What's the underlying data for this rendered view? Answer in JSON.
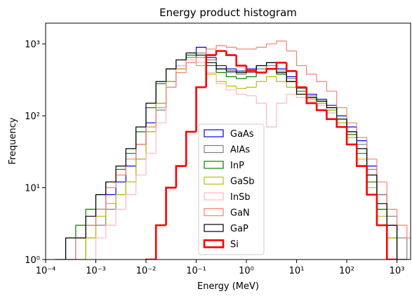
{
  "chart_data": {
    "type": "histogram",
    "title": "Energy product histogram",
    "xlabel": "Energy (MeV)",
    "ylabel": "Frequency",
    "xscale": "log",
    "yscale": "log",
    "bins": [
      0.0001,
      0.000158,
      0.000251,
      0.000398,
      0.000631,
      0.001,
      0.00158,
      0.00251,
      0.00398,
      0.00631,
      0.01,
      0.0158,
      0.0251,
      0.0398,
      0.0631,
      0.1,
      0.158,
      0.251,
      0.398,
      0.631,
      1,
      1.58,
      2.51,
      3.98,
      6.31,
      10,
      15.8,
      25.1,
      39.8,
      63.1,
      100,
      158,
      251,
      398,
      631,
      1000,
      1580,
      2510
    ],
    "xlim": [
      0.0001,
      1870
    ],
    "ylim": [
      1,
      1950
    ],
    "xticks": [
      {
        "value": 0.0001,
        "label": "10⁻⁴"
      },
      {
        "value": 0.001,
        "label": "10⁻³"
      },
      {
        "value": 0.01,
        "label": "10⁻²"
      },
      {
        "value": 0.1,
        "label": "10⁻¹"
      },
      {
        "value": 1,
        "label": "10⁰"
      },
      {
        "value": 10,
        "label": "10¹"
      },
      {
        "value": 100,
        "label": "10²"
      },
      {
        "value": 1000,
        "label": "10³"
      }
    ],
    "yticks": [
      {
        "value": 1,
        "label": "10⁰"
      },
      {
        "value": 10,
        "label": "10¹"
      },
      {
        "value": 100,
        "label": "10²"
      },
      {
        "value": 1000,
        "label": "10³"
      }
    ],
    "legend": "center",
    "series": [
      {
        "name": "GaAs",
        "color": "#0000ee",
        "linewidth": 1.2,
        "values": [
          0,
          0,
          1,
          2,
          3,
          5,
          8,
          12,
          20,
          40,
          80,
          150,
          300,
          500,
          700,
          900,
          650,
          500,
          450,
          420,
          450,
          500,
          550,
          450,
          350,
          250,
          200,
          170,
          140,
          100,
          70,
          45,
          20,
          8,
          3,
          1,
          0
        ]
      },
      {
        "name": "AlAs",
        "color": "#808080",
        "linewidth": 1.2,
        "values": [
          0,
          0,
          0,
          1,
          2,
          3,
          5,
          8,
          12,
          25,
          60,
          120,
          250,
          450,
          650,
          750,
          600,
          450,
          400,
          380,
          400,
          450,
          500,
          420,
          330,
          240,
          190,
          160,
          130,
          90,
          60,
          40,
          18,
          8,
          4,
          2,
          1
        ]
      },
      {
        "name": "InP",
        "color": "#008000",
        "linewidth": 1.2,
        "values": [
          0,
          1,
          2,
          3,
          5,
          8,
          12,
          18,
          30,
          60,
          130,
          280,
          450,
          600,
          700,
          650,
          500,
          400,
          350,
          330,
          350,
          400,
          450,
          380,
          300,
          220,
          180,
          150,
          120,
          80,
          55,
          30,
          12,
          5,
          2,
          1,
          0
        ]
      },
      {
        "name": "GaSb",
        "color": "#bcbd00",
        "linewidth": 1.2,
        "values": [
          0,
          0,
          1,
          1,
          2,
          4,
          6,
          8,
          12,
          25,
          60,
          150,
          300,
          450,
          550,
          500,
          380,
          300,
          260,
          240,
          250,
          300,
          350,
          300,
          250,
          200,
          170,
          150,
          120,
          80,
          50,
          25,
          10,
          4,
          2,
          1,
          0
        ]
      },
      {
        "name": "InSb",
        "color": "#ffb6c1",
        "linewidth": 1.2,
        "values": [
          0,
          0,
          0,
          0,
          1,
          2,
          3,
          5,
          8,
          15,
          30,
          80,
          250,
          500,
          600,
          550,
          400,
          280,
          230,
          200,
          190,
          150,
          70,
          150,
          200,
          180,
          160,
          140,
          110,
          70,
          40,
          20,
          8,
          3,
          1,
          0,
          0
        ]
      },
      {
        "name": "GaN",
        "color": "#fa8072",
        "linewidth": 1.2,
        "values": [
          0,
          0,
          1,
          2,
          3,
          5,
          10,
          15,
          25,
          40,
          70,
          130,
          250,
          400,
          550,
          650,
          850,
          950,
          900,
          850,
          850,
          900,
          1000,
          1100,
          800,
          500,
          380,
          300,
          220,
          130,
          80,
          50,
          25,
          12,
          5,
          3,
          2
        ]
      },
      {
        "name": "GaP",
        "color": "#000000",
        "linewidth": 1.2,
        "values": [
          0,
          1,
          2,
          2,
          4,
          8,
          12,
          20,
          35,
          70,
          150,
          300,
          450,
          600,
          750,
          700,
          550,
          450,
          420,
          400,
          430,
          500,
          550,
          400,
          300,
          200,
          180,
          160,
          130,
          90,
          60,
          35,
          15,
          6,
          3,
          1,
          0
        ]
      },
      {
        "name": "Si",
        "color": "#ff0000",
        "linewidth": 2.6,
        "values": [
          0,
          0,
          0,
          0,
          0,
          0,
          0,
          0,
          0,
          0,
          1,
          3,
          10,
          20,
          60,
          250,
          700,
          800,
          700,
          500,
          420,
          400,
          450,
          550,
          420,
          250,
          150,
          120,
          90,
          70,
          40,
          20,
          8,
          3,
          1,
          0,
          0
        ]
      }
    ]
  }
}
